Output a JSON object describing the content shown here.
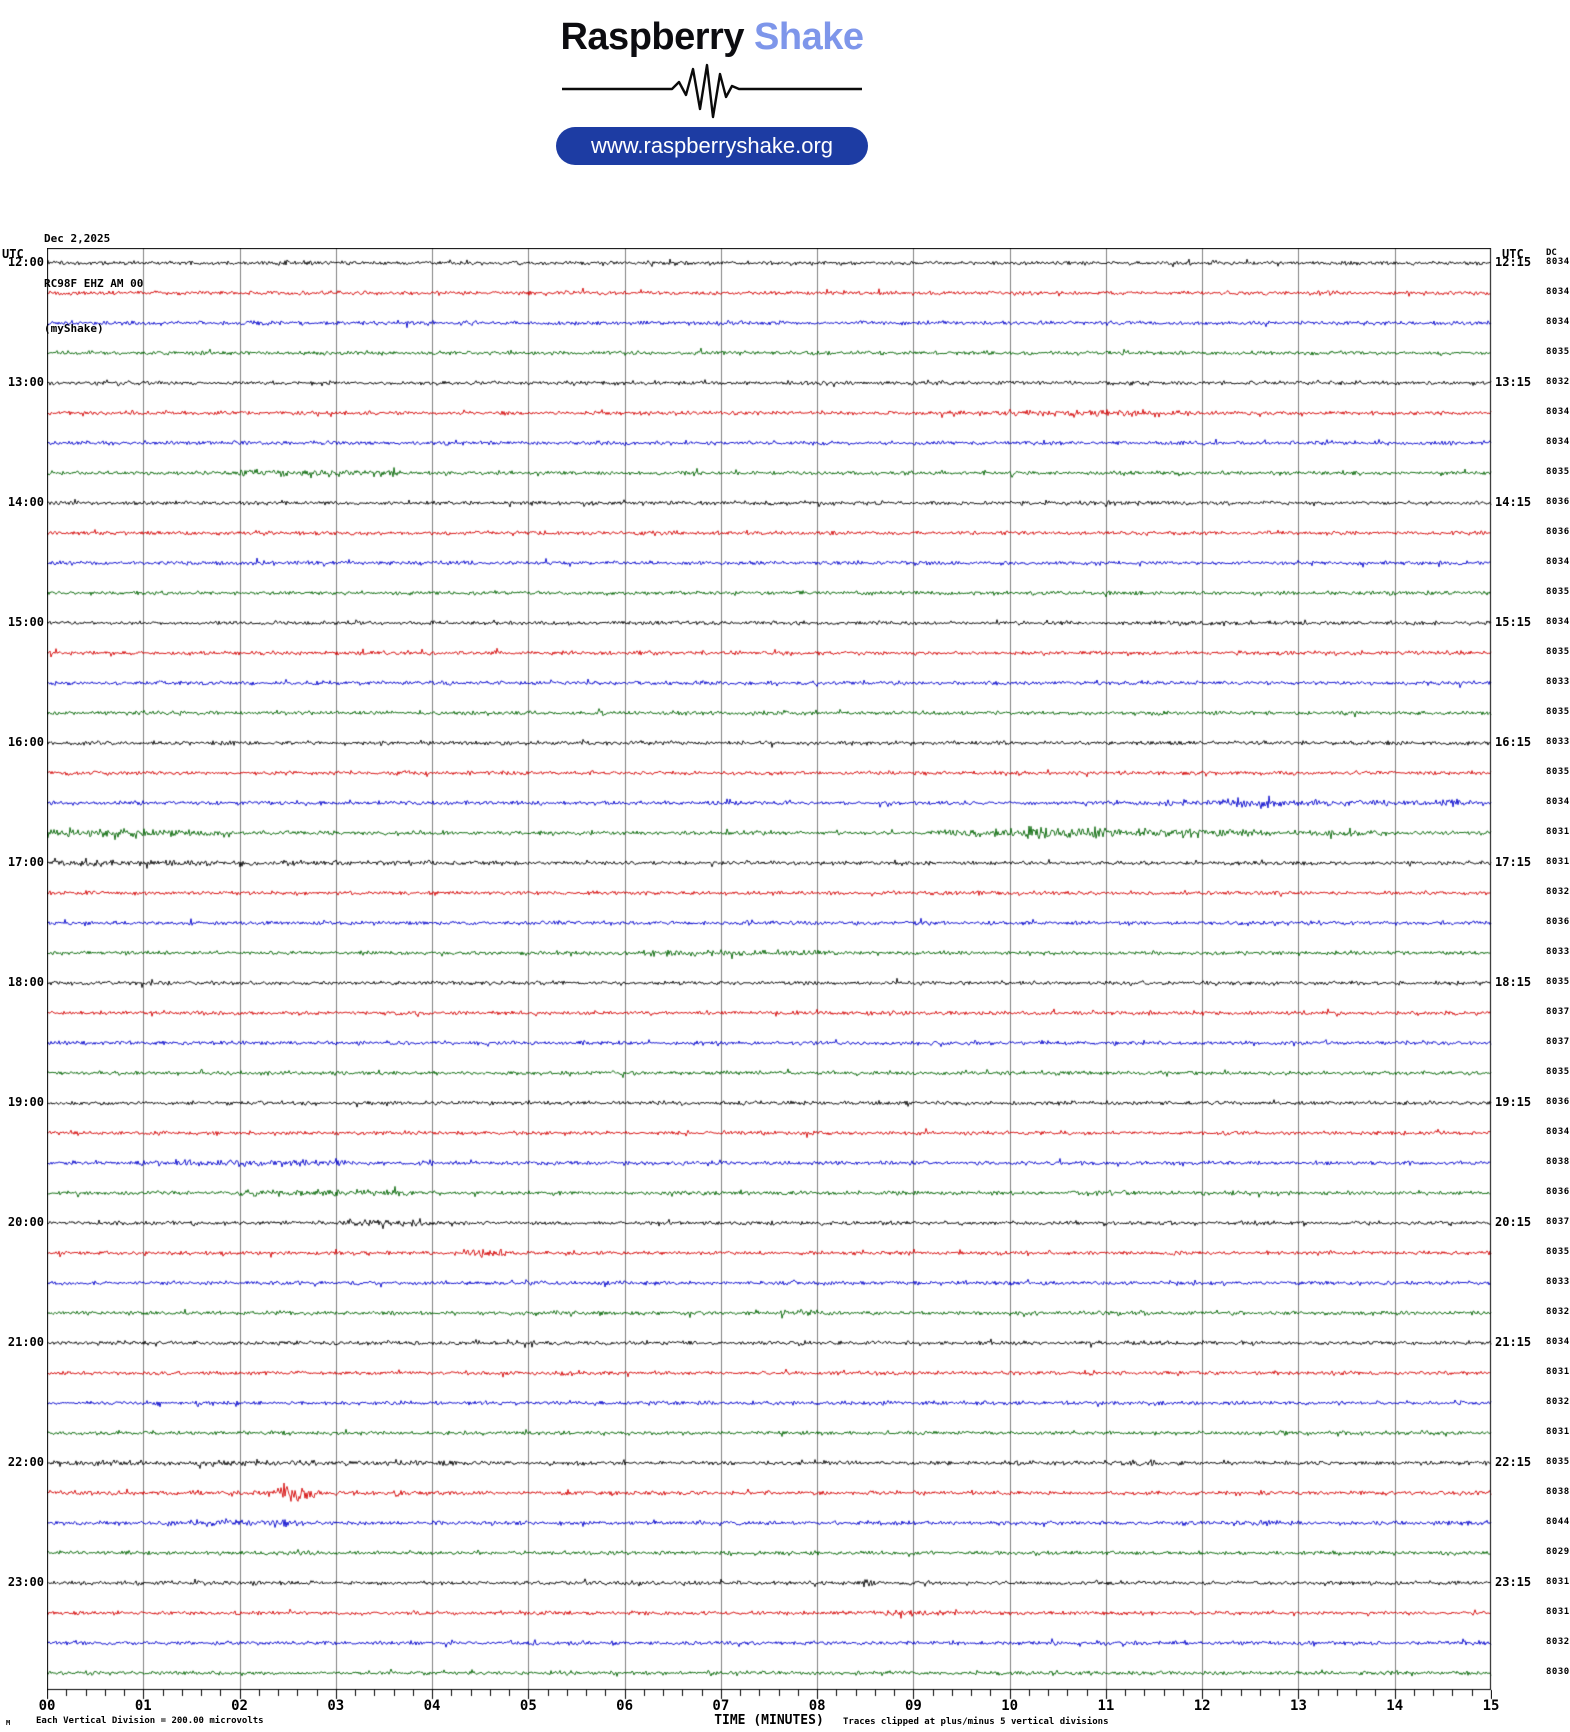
{
  "header": {
    "logo_primary": "Raspberry",
    "logo_secondary": "Shake",
    "url_button": "www.raspberryshake.org"
  },
  "station": {
    "date": "Dec 2,2025",
    "id": "RC98F EHZ AM 00",
    "network": "(myShake)"
  },
  "axis": {
    "left_header": "UTC",
    "right_header": "UTC",
    "dc_header": "DC",
    "x_title": "TIME (MINUTES)",
    "clip_note": "Traces clipped at plus/minus 5 vertical divisions",
    "scale_note": "Each Vertical Division =  200.00 microvolts",
    "scale_marker": "M",
    "x_ticks": [
      "00",
      "01",
      "02",
      "03",
      "04",
      "05",
      "06",
      "07",
      "08",
      "09",
      "10",
      "11",
      "12",
      "13",
      "14",
      "15"
    ]
  },
  "chart_data": {
    "type": "line",
    "subtype": "helicorder",
    "minutes_per_row": 15,
    "xlabel": "TIME (MINUTES)",
    "x_range": [
      0,
      15
    ],
    "grid": "vertical-minute-lines",
    "grid_color": "#808080",
    "colors": {
      "black": "#000000",
      "red": "#d40000",
      "blue": "#0000cc",
      "green": "#006400"
    },
    "rows": [
      {
        "left_label": "12:00",
        "right_label": "12:15",
        "color": "black",
        "dc": 8034,
        "events": []
      },
      {
        "left_label": "",
        "right_label": "",
        "color": "red",
        "dc": 8034,
        "events": []
      },
      {
        "left_label": "",
        "right_label": "",
        "color": "blue",
        "dc": 8034,
        "events": []
      },
      {
        "left_label": "",
        "right_label": "",
        "color": "green",
        "dc": 8035,
        "events": []
      },
      {
        "left_label": "13:00",
        "right_label": "13:15",
        "color": "black",
        "dc": 8032,
        "events": []
      },
      {
        "left_label": "",
        "right_label": "",
        "color": "red",
        "dc": 8034,
        "events": [
          [
            10.0,
            11.7,
            1.7
          ]
        ]
      },
      {
        "left_label": "",
        "right_label": "",
        "color": "blue",
        "dc": 8034,
        "events": []
      },
      {
        "left_label": "",
        "right_label": "",
        "color": "green",
        "dc": 8035,
        "events": [
          [
            2.0,
            2.9,
            2.1
          ],
          [
            2.9,
            3.6,
            1.6
          ]
        ]
      },
      {
        "left_label": "14:00",
        "right_label": "14:15",
        "color": "black",
        "dc": 8036,
        "events": []
      },
      {
        "left_label": "",
        "right_label": "",
        "color": "red",
        "dc": 8036,
        "events": []
      },
      {
        "left_label": "",
        "right_label": "",
        "color": "blue",
        "dc": 8034,
        "events": []
      },
      {
        "left_label": "",
        "right_label": "",
        "color": "green",
        "dc": 8035,
        "events": []
      },
      {
        "left_label": "15:00",
        "right_label": "15:15",
        "color": "black",
        "dc": 8034,
        "events": []
      },
      {
        "left_label": "",
        "right_label": "",
        "color": "red",
        "dc": 8035,
        "events": []
      },
      {
        "left_label": "",
        "right_label": "",
        "color": "blue",
        "dc": 8033,
        "events": []
      },
      {
        "left_label": "",
        "right_label": "",
        "color": "green",
        "dc": 8035,
        "events": []
      },
      {
        "left_label": "16:00",
        "right_label": "16:15",
        "color": "black",
        "dc": 8033,
        "events": []
      },
      {
        "left_label": "",
        "right_label": "",
        "color": "red",
        "dc": 8035,
        "events": []
      },
      {
        "left_label": "",
        "right_label": "",
        "color": "blue",
        "dc": 8034,
        "events": [
          [
            11.2,
            12.2,
            1.5
          ],
          [
            12.3,
            12.8,
            2.6
          ],
          [
            12.8,
            15.0,
            1.6
          ]
        ]
      },
      {
        "left_label": "",
        "right_label": "",
        "color": "green",
        "dc": 8031,
        "events": [
          [
            0.0,
            1.0,
            2.4
          ],
          [
            1.0,
            1.8,
            1.7
          ],
          [
            9.3,
            10.1,
            2.2
          ],
          [
            10.1,
            11.0,
            3.0
          ],
          [
            11.0,
            12.3,
            2.2
          ],
          [
            12.3,
            13.8,
            1.6
          ]
        ]
      },
      {
        "left_label": "17:00",
        "right_label": "17:15",
        "color": "black",
        "dc": 8031,
        "events": [
          [
            0.0,
            2.0,
            1.6
          ],
          [
            2.0,
            4.0,
            1.3
          ]
        ]
      },
      {
        "left_label": "",
        "right_label": "",
        "color": "red",
        "dc": 8032,
        "events": []
      },
      {
        "left_label": "",
        "right_label": "",
        "color": "blue",
        "dc": 8036,
        "events": []
      },
      {
        "left_label": "",
        "right_label": "",
        "color": "green",
        "dc": 8033,
        "events": [
          [
            6.3,
            8.0,
            1.6
          ]
        ]
      },
      {
        "left_label": "18:00",
        "right_label": "18:15",
        "color": "black",
        "dc": 8035,
        "events": []
      },
      {
        "left_label": "",
        "right_label": "",
        "color": "red",
        "dc": 8037,
        "events": []
      },
      {
        "left_label": "",
        "right_label": "",
        "color": "blue",
        "dc": 8037,
        "events": []
      },
      {
        "left_label": "",
        "right_label": "",
        "color": "green",
        "dc": 8035,
        "events": []
      },
      {
        "left_label": "19:00",
        "right_label": "19:15",
        "color": "black",
        "dc": 8036,
        "events": []
      },
      {
        "left_label": "",
        "right_label": "",
        "color": "red",
        "dc": 8034,
        "events": []
      },
      {
        "left_label": "",
        "right_label": "",
        "color": "blue",
        "dc": 8038,
        "events": [
          [
            1.0,
            3.1,
            1.7
          ]
        ]
      },
      {
        "left_label": "",
        "right_label": "",
        "color": "green",
        "dc": 8036,
        "events": [
          [
            2.0,
            3.7,
            1.7
          ],
          [
            10.9,
            11.2,
            1.5
          ]
        ]
      },
      {
        "left_label": "20:00",
        "right_label": "20:15",
        "color": "black",
        "dc": 8037,
        "events": [
          [
            3.1,
            4.0,
            2.0
          ]
        ]
      },
      {
        "left_label": "",
        "right_label": "",
        "color": "red",
        "dc": 8035,
        "events": [
          [
            4.3,
            4.7,
            1.8
          ]
        ]
      },
      {
        "left_label": "",
        "right_label": "",
        "color": "blue",
        "dc": 8033,
        "events": []
      },
      {
        "left_label": "",
        "right_label": "",
        "color": "green",
        "dc": 8032,
        "events": [
          [
            7.7,
            8.0,
            1.6
          ],
          [
            11.0,
            11.4,
            1.6
          ]
        ]
      },
      {
        "left_label": "21:00",
        "right_label": "21:15",
        "color": "black",
        "dc": 8034,
        "events": []
      },
      {
        "left_label": "",
        "right_label": "",
        "color": "red",
        "dc": 8031,
        "events": [
          [
            5.3,
            5.6,
            1.5
          ]
        ]
      },
      {
        "left_label": "",
        "right_label": "",
        "color": "blue",
        "dc": 8032,
        "events": []
      },
      {
        "left_label": "",
        "right_label": "",
        "color": "green",
        "dc": 8031,
        "events": []
      },
      {
        "left_label": "22:00",
        "right_label": "22:15",
        "color": "black",
        "dc": 8035,
        "events": [
          [
            0.0,
            4.2,
            1.35
          ],
          [
            11.0,
            11.5,
            1.5
          ]
        ]
      },
      {
        "left_label": "",
        "right_label": "",
        "color": "red",
        "dc": 8038,
        "events": [
          [
            0.0,
            2.4,
            1.25
          ],
          [
            2.45,
            2.75,
            4.5
          ],
          [
            2.75,
            4.0,
            1.3
          ]
        ]
      },
      {
        "left_label": "",
        "right_label": "",
        "color": "blue",
        "dc": 8044,
        "events": [
          [
            1.3,
            2.6,
            1.8
          ],
          [
            12.3,
            12.9,
            1.5
          ]
        ]
      },
      {
        "left_label": "",
        "right_label": "",
        "color": "green",
        "dc": 8029,
        "events": []
      },
      {
        "left_label": "23:00",
        "right_label": "23:15",
        "color": "black",
        "dc": 8031,
        "events": [
          [
            8.4,
            8.6,
            2.2
          ]
        ]
      },
      {
        "left_label": "",
        "right_label": "",
        "color": "red",
        "dc": 8031,
        "events": [
          [
            8.8,
            9.3,
            1.5
          ]
        ]
      },
      {
        "left_label": "",
        "right_label": "",
        "color": "blue",
        "dc": 8032,
        "events": []
      },
      {
        "left_label": "",
        "right_label": "",
        "color": "green",
        "dc": 8030,
        "events": []
      }
    ]
  }
}
